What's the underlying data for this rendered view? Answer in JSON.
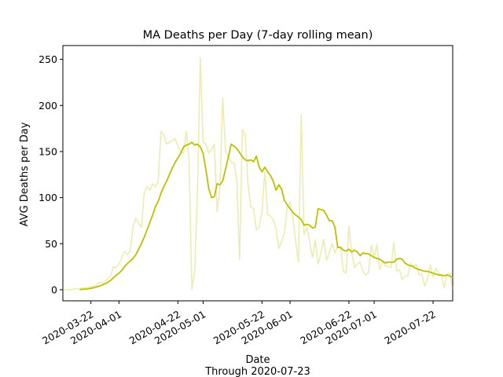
{
  "chart_data": {
    "type": "line",
    "title": "MA Deaths per Day (7-day rolling mean)",
    "xlabel": "Date",
    "xlabel_sub": "Through 2020-07-23",
    "ylabel": "AVG Deaths per Day",
    "ylim": [
      -12,
      265
    ],
    "xlim": [
      "2020-03-12",
      "2020-07-29"
    ],
    "grid": false,
    "x_ticks": [
      "2020-03-22",
      "2020-04-01",
      "2020-04-22",
      "2020-05-01",
      "2020-05-22",
      "2020-06-01",
      "2020-06-22",
      "2020-07-01",
      "2020-07-22"
    ],
    "y_ticks": [
      0,
      50,
      100,
      150,
      200,
      250
    ],
    "colors": {
      "mean": "#bfbf00",
      "daily": "#bfbf00"
    },
    "series": [
      {
        "role": "daily",
        "start": "2020-03-12",
        "values": [
          0,
          0,
          0,
          0,
          1,
          1,
          1,
          2,
          2,
          3,
          3,
          4,
          5,
          8,
          7,
          9,
          12,
          15,
          25,
          24,
          28,
          35,
          42,
          38,
          42,
          68,
          78,
          72,
          68,
          105,
          112,
          108,
          115,
          112,
          118,
          172,
          168,
          158,
          160,
          162,
          164,
          156,
          150,
          148,
          172,
          140,
          0,
          20,
          108,
          252,
          160,
          158,
          148,
          152,
          158,
          85,
          110,
          208,
          150,
          145,
          138,
          138,
          120,
          33,
          174,
          168,
          115,
          90,
          88,
          65,
          68,
          85,
          128,
          82,
          80,
          76,
          66,
          45,
          52,
          62,
          90,
          95,
          80,
          52,
          30,
          190,
          60,
          68,
          52,
          35,
          54,
          28,
          40,
          55,
          32,
          40,
          50,
          40,
          47,
          45,
          20,
          18,
          69,
          40,
          24,
          28,
          30,
          20,
          16,
          19,
          48,
          35,
          49,
          22,
          30,
          26,
          25,
          24,
          51,
          20,
          22,
          11,
          15,
          15,
          29,
          25,
          28,
          16,
          17,
          4,
          12,
          27,
          14,
          23,
          18,
          14,
          2,
          17,
          18,
          0
        ]
      },
      {
        "role": "rolling-mean",
        "start": "2020-03-18",
        "values": [
          0,
          0.5,
          0.7,
          1,
          1.5,
          2.2,
          3,
          4,
          5,
          6.5,
          8,
          10,
          13,
          15.5,
          18,
          21,
          25,
          28.5,
          31,
          34,
          38,
          44,
          50,
          57,
          65,
          73,
          81,
          90,
          96,
          105,
          112,
          118,
          125,
          132,
          138,
          143,
          148,
          155,
          157,
          158,
          160,
          157,
          158,
          155,
          148,
          130,
          110,
          100,
          101,
          115,
          114,
          118,
          131,
          144,
          158,
          156,
          153,
          149,
          144,
          141,
          140,
          141,
          139,
          145,
          133,
          128,
          133,
          128,
          124,
          118,
          108,
          114,
          109,
          97,
          92,
          88,
          84,
          81,
          79,
          76,
          70,
          71,
          70,
          67,
          68,
          88,
          87,
          86,
          81,
          75,
          75,
          68,
          46,
          46,
          43,
          42,
          44,
          41,
          43,
          41,
          37,
          40,
          39,
          39,
          37,
          35,
          34,
          33,
          31,
          29,
          30,
          30,
          30,
          33,
          34,
          33,
          29,
          27,
          26,
          25,
          23,
          22,
          21,
          20,
          20,
          19,
          18,
          17,
          16,
          16,
          15,
          16,
          15,
          13
        ]
      }
    ]
  }
}
